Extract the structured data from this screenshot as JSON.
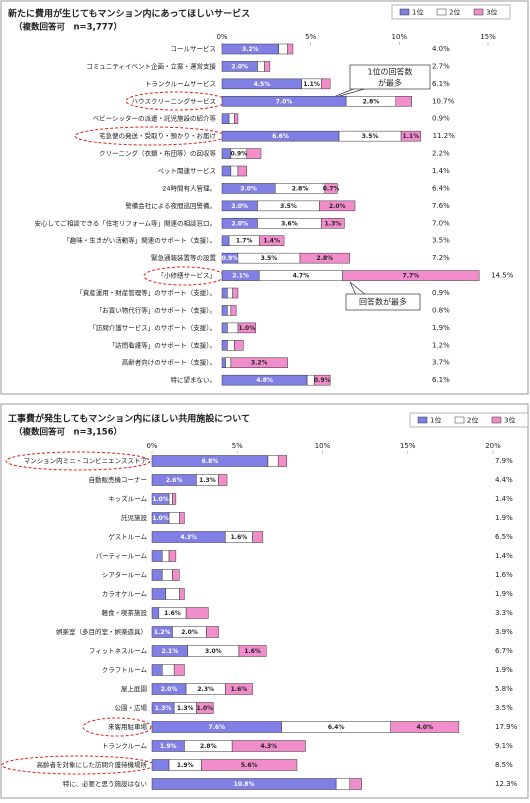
{
  "chart_data": [
    {
      "type": "bar",
      "orientation": "horizontal",
      "stacked": true,
      "title": "新たに費用が生じてもマンション内にあってほしいサービス",
      "subtitle": "（複数回答可　n=3,777）",
      "categories": [
        "コールサービス",
        "コミュニティイベント企画・立案・運営支援",
        "トランクルームサービス",
        "ハウスクリーニングサービス",
        "ベビーシッターの派遣・託児施設の紹介等",
        "宅急便の発送・受取り・預かり・お届け",
        "クリーニング（衣類・布団等）の回収等",
        "ペット関連サービス",
        "24時間有人管理。",
        "警備会社による夜間巡回警備。",
        "安心してご相談できる「住宅リフォーム等」関連の相談窓口。",
        "「趣味・生きがい活動等」関連のサポート（支援）。",
        "緊急通報装置等の設置",
        "「小修繕サービス」",
        "「資産運用・財産管理等」のサポート（支援）。",
        "「お買い物代行等」のサポート（支援）。",
        "「訪問介護サービス」のサポート（支援）。",
        "「訪問看護等」のサポート（支援）。",
        "高齢者向けのサポート（支援）。",
        "特に望まない。"
      ],
      "series": [
        {
          "name": "1位",
          "color": "#7f7fe6",
          "values": [
            3.2,
            2.0,
            4.5,
            7.0,
            0.4,
            6.6,
            0.5,
            0.5,
            3.0,
            2.0,
            2.0,
            0.4,
            0.9,
            2.1,
            0.3,
            0.3,
            0.3,
            0.3,
            0.2,
            4.8
          ],
          "value_labels": [
            "3.2%",
            "2.0%",
            "4.5%",
            "7.0%",
            null,
            "6.6%",
            null,
            null,
            "3.0%",
            "2.0%",
            "2.0%",
            null,
            "0.9%",
            "2.1%",
            null,
            null,
            null,
            null,
            null,
            "4.8%"
          ]
        },
        {
          "name": "2位",
          "color": "#ffffff",
          "values": [
            0.5,
            0.4,
            1.1,
            2.8,
            0.3,
            3.5,
            0.9,
            0.4,
            2.8,
            3.5,
            3.6,
            1.7,
            3.5,
            4.7,
            0.3,
            0.2,
            0.6,
            0.4,
            0.3,
            0.4
          ],
          "value_labels": [
            null,
            null,
            "1.1%",
            "2.8%",
            null,
            "3.5%",
            "0.9%",
            null,
            "2.8%",
            "3.5%",
            "3.6%",
            "1.7%",
            "3.5%",
            "4.7%",
            null,
            null,
            null,
            null,
            null,
            null
          ]
        },
        {
          "name": "3位",
          "color": "#f28dcc",
          "values": [
            0.3,
            0.3,
            0.5,
            0.9,
            0.2,
            1.1,
            0.8,
            0.5,
            0.7,
            2.0,
            1.3,
            1.4,
            2.8,
            7.7,
            0.3,
            0.3,
            1.0,
            0.5,
            3.2,
            0.9
          ],
          "value_labels": [
            null,
            null,
            null,
            null,
            null,
            "1.1%",
            null,
            null,
            "0.7%",
            "2.0%",
            "1.3%",
            "1.4%",
            "2.8%",
            "7.7%",
            null,
            null,
            "1.0%",
            null,
            "3.2%",
            "0.9%"
          ]
        }
      ],
      "totals": [
        4.0,
        2.7,
        6.1,
        10.7,
        0.9,
        11.2,
        2.2,
        1.4,
        6.4,
        7.6,
        7.0,
        3.5,
        7.2,
        14.5,
        0.9,
        0.8,
        1.9,
        1.2,
        3.7,
        6.1
      ],
      "total_labels": [
        "4.0%",
        "2.7%",
        "6.1%",
        "10.7%",
        "0.9%",
        "11.2%",
        "2.2%",
        "1.4%",
        "6.4%",
        "7.6%",
        "7.0%",
        "3.5%",
        "7.2%",
        "14.5%",
        "0.9%",
        "0.8%",
        "1.9%",
        "1.2%",
        "3.7%",
        "6.1%"
      ],
      "xlim": [
        0,
        15
      ],
      "xticks": [
        {
          "value": 0,
          "label": "0%"
        },
        {
          "value": 5,
          "label": "5%"
        },
        {
          "value": 10,
          "label": "10%"
        },
        {
          "value": 15,
          "label": "15%"
        }
      ],
      "annotations": [
        {
          "lines": [
            "1位の回答数",
            "が最多"
          ]
        },
        {
          "lines": [
            "回答数が最多"
          ]
        }
      ]
    },
    {
      "type": "bar",
      "orientation": "horizontal",
      "stacked": true,
      "title": "工事費が発生してもマンション内にほしい共用施設について",
      "subtitle": "（複数回答可　n=3,156）",
      "categories": [
        "マンション内ミニ・コンビニエンスストア",
        "自動販売機コーナー",
        "キッズルーム",
        "託児施設",
        "ゲストルーム",
        "パーティールーム",
        "シアタールーム",
        "カラオケルーム",
        "軽食・喫茶施設",
        "娯楽室（多目的室・娯楽遊具）",
        "フィットネスルーム",
        "クラフトルーム",
        "屋上庭園",
        "公園・広場",
        "来客用駐車場",
        "トランクルーム",
        "高齢者を対象にした訪問介護待機場所",
        "特に、必要と思う施設はない"
      ],
      "series": [
        {
          "name": "1位",
          "color": "#7f7fe6",
          "values": [
            6.8,
            2.6,
            1.0,
            1.0,
            4.3,
            0.6,
            0.6,
            0.8,
            0.4,
            1.2,
            2.1,
            0.6,
            2.0,
            1.3,
            7.6,
            1.9,
            1.0,
            10.8
          ],
          "value_labels": [
            "6.8%",
            "2.6%",
            "1.0%",
            "1.0%",
            "4.3%",
            null,
            null,
            null,
            null,
            "1.2%",
            "2.1%",
            null,
            "2.0%",
            "1.3%",
            "7.6%",
            "1.9%",
            null,
            "10.8%"
          ]
        },
        {
          "name": "2位",
          "color": "#ffffff",
          "values": [
            0.6,
            1.3,
            0.2,
            0.6,
            1.6,
            0.4,
            0.6,
            0.8,
            1.6,
            2.0,
            3.0,
            0.7,
            2.3,
            1.3,
            6.4,
            2.8,
            1.9,
            0.8
          ],
          "value_labels": [
            null,
            "1.3%",
            null,
            null,
            "1.6%",
            null,
            null,
            null,
            "1.6%",
            "2.0%",
            "3.0%",
            null,
            "2.3%",
            "1.3%",
            "6.4%",
            "2.8%",
            "1.9%",
            null
          ]
        },
        {
          "name": "3位",
          "color": "#f28dcc",
          "values": [
            0.5,
            0.5,
            0.2,
            0.3,
            0.6,
            0.4,
            0.4,
            0.3,
            1.3,
            0.7,
            1.6,
            0.6,
            1.6,
            1.0,
            4.0,
            4.3,
            5.6,
            0.7
          ],
          "value_labels": [
            null,
            null,
            null,
            null,
            null,
            null,
            null,
            null,
            null,
            null,
            "1.6%",
            null,
            "1.6%",
            "1.0%",
            "4.0%",
            "4.3%",
            "5.6%",
            null
          ]
        }
      ],
      "totals": [
        7.9,
        4.4,
        1.4,
        1.9,
        6.5,
        1.4,
        1.6,
        1.9,
        3.3,
        3.9,
        6.7,
        1.9,
        5.8,
        3.5,
        17.9,
        9.1,
        8.5,
        12.3
      ],
      "total_labels": [
        "7.9%",
        "4.4%",
        "1.4%",
        "1.9%",
        "6.5%",
        "1.4%",
        "1.6%",
        "1.9%",
        "3.3%",
        "3.9%",
        "6.7%",
        "1.9%",
        "5.8%",
        "3.5%",
        "17.9%",
        "9.1%",
        "8.5%",
        "12.3%"
      ],
      "xlim": [
        0,
        20
      ],
      "xticks": [
        {
          "value": 0,
          "label": "0%"
        },
        {
          "value": 5,
          "label": "5%"
        },
        {
          "value": 10,
          "label": "10%"
        },
        {
          "value": 15,
          "label": "15%"
        },
        {
          "value": 20,
          "label": "20%"
        }
      ]
    }
  ]
}
